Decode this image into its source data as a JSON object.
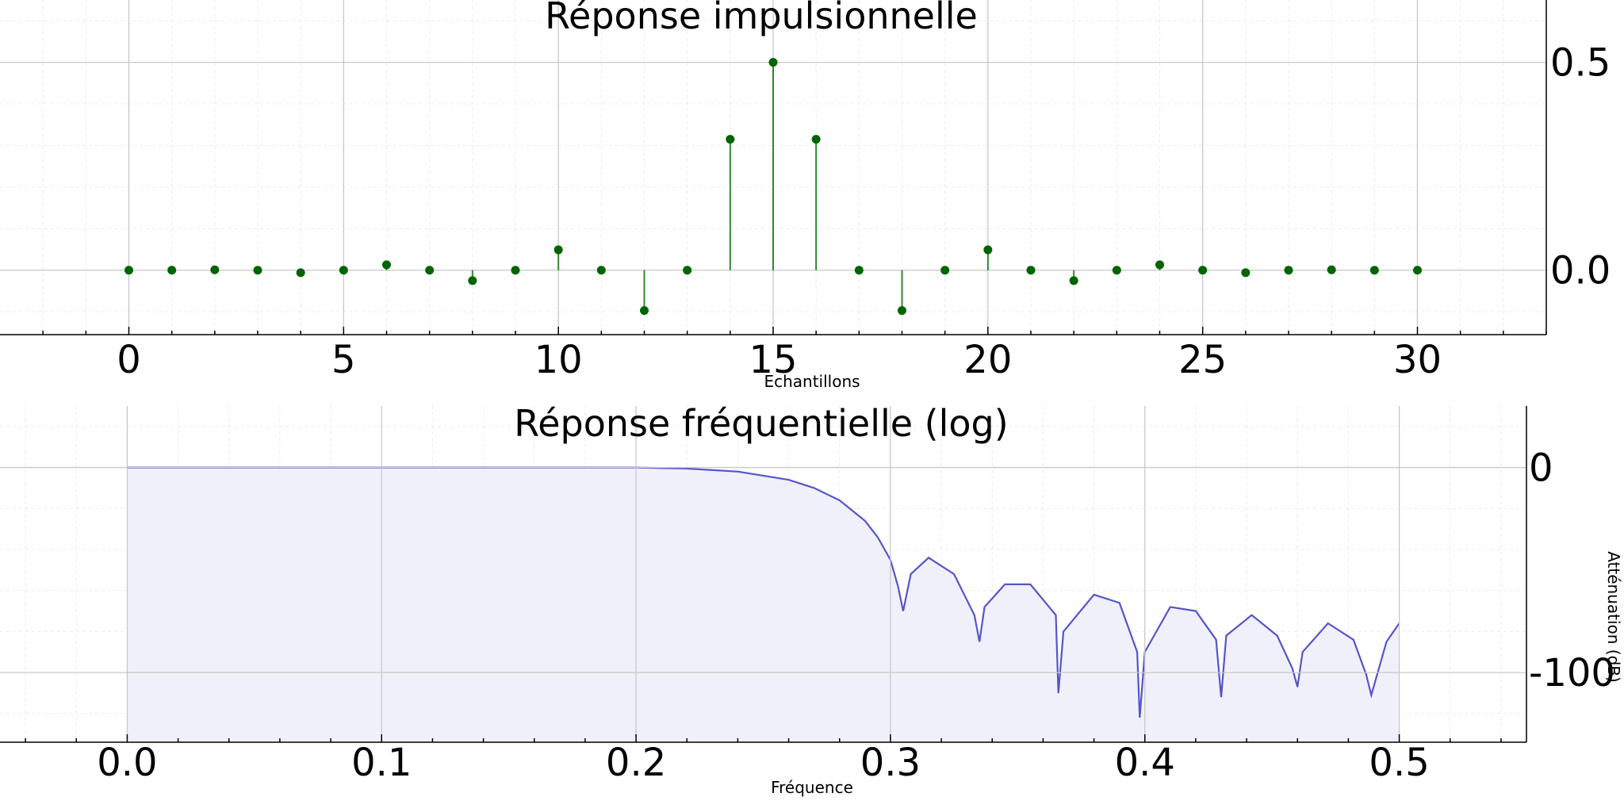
{
  "chart_data": [
    {
      "type": "stem",
      "title": "Réponse impulsionnelle",
      "xlabel": "Echantillons",
      "ylabel": "",
      "xlim": [
        -3,
        33
      ],
      "ylim": [
        -0.155,
        0.65
      ],
      "xticks": [
        0,
        5,
        10,
        15,
        20,
        25,
        30
      ],
      "xtick_labels": [
        "0",
        "5",
        "10",
        "15",
        "20",
        "25",
        "30"
      ],
      "yticks": [
        0.0,
        0.5
      ],
      "ytick_labels": [
        "0.0",
        "0.5"
      ],
      "grid": true,
      "y_axis_side": "right",
      "x": [
        0,
        1,
        2,
        3,
        4,
        5,
        6,
        7,
        8,
        9,
        10,
        11,
        12,
        13,
        14,
        15,
        16,
        17,
        18,
        19,
        20,
        21,
        22,
        23,
        24,
        25,
        26,
        27,
        28,
        29,
        30
      ],
      "values": [
        0.0,
        0.0,
        0.001,
        0.0,
        -0.006,
        0.0,
        0.013,
        0.0,
        -0.025,
        0.0,
        0.049,
        0.0,
        -0.097,
        0.0,
        0.315,
        0.5,
        0.315,
        0.0,
        -0.097,
        0.0,
        0.049,
        0.0,
        -0.025,
        0.0,
        0.013,
        0.0,
        -0.006,
        0.0,
        0.001,
        0.0,
        0.0
      ],
      "colors": {
        "stem": "#2e8b2e",
        "marker": "#006400"
      }
    },
    {
      "type": "area",
      "title": "Réponse fréquentielle (log)",
      "xlabel": "Fréquence",
      "ylabel": "Atténuation (dB)",
      "xlim": [
        -0.05,
        0.55
      ],
      "ylim": [
        -134,
        30
      ],
      "xticks": [
        0.0,
        0.1,
        0.2,
        0.3,
        0.4,
        0.5
      ],
      "xtick_labels": [
        "0.0",
        "0.1",
        "0.2",
        "0.3",
        "0.4",
        "0.5"
      ],
      "yticks": [
        0,
        -100
      ],
      "ytick_labels": [
        "0",
        "-100"
      ],
      "grid": true,
      "y_axis_side": "right",
      "x": [
        0.0,
        0.05,
        0.1,
        0.15,
        0.2,
        0.22,
        0.24,
        0.26,
        0.27,
        0.28,
        0.29,
        0.295,
        0.3,
        0.303,
        0.305,
        0.308,
        0.315,
        0.325,
        0.333,
        0.335,
        0.337,
        0.345,
        0.355,
        0.365,
        0.366,
        0.368,
        0.38,
        0.39,
        0.397,
        0.398,
        0.4,
        0.41,
        0.42,
        0.428,
        0.43,
        0.432,
        0.442,
        0.452,
        0.458,
        0.46,
        0.462,
        0.472,
        0.482,
        0.487,
        0.489,
        0.495,
        0.5
      ],
      "values": [
        0.0,
        0.0,
        0.0,
        0.0,
        0.0,
        -0.5,
        -2,
        -6,
        -10,
        -16,
        -26,
        -34,
        -45,
        -58,
        -70,
        -52,
        -44,
        -52,
        -72,
        -85,
        -68,
        -57,
        -57,
        -72,
        -110,
        -80,
        -62,
        -66,
        -90,
        -122,
        -90,
        -68,
        -70,
        -84,
        -112,
        -82,
        -72,
        -82,
        -98,
        -107,
        -90,
        -76,
        -84,
        -101,
        -111,
        -85,
        -76
      ],
      "colors": {
        "line": "#5555cc",
        "fill": "#f0f0fa"
      }
    }
  ]
}
